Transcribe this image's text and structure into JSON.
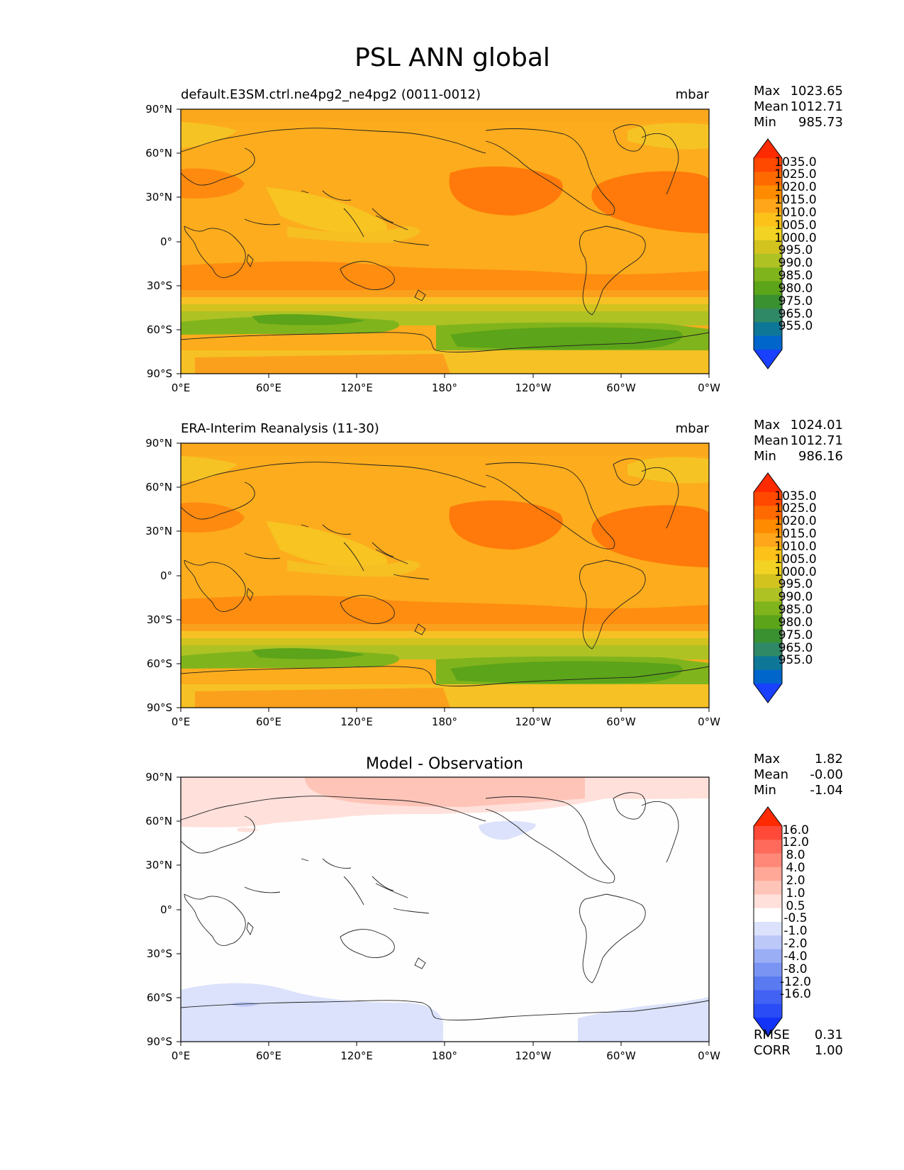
{
  "figure": {
    "title": "PSL ANN global"
  },
  "axes": {
    "xticks": [
      "0°E",
      "60°E",
      "120°E",
      "180°",
      "120°W",
      "60°W",
      "0°W"
    ],
    "yticks": [
      "90°N",
      "60°N",
      "30°N",
      "0°",
      "30°S",
      "60°S",
      "90°S"
    ]
  },
  "panels": [
    {
      "left_title": "default.E3SM.ctrl.ne4pg2_ne4pg2 (0011-0012)",
      "center_title": "",
      "units": "mbar",
      "stats": {
        "max_label": "Max",
        "max": "1023.65",
        "mean_label": "Mean",
        "mean": "1012.71",
        "min_label": "Min",
        "min": "985.73"
      }
    },
    {
      "left_title": "ERA-Interim Reanalysis (11-30)",
      "center_title": "",
      "units": "mbar",
      "stats": {
        "max_label": "Max",
        "max": "1024.01",
        "mean_label": "Mean",
        "mean": "1012.71",
        "min_label": "Min",
        "min": "986.16"
      }
    },
    {
      "left_title": "",
      "center_title": "Model - Observation",
      "units": "",
      "stats": {
        "max_label": "Max",
        "max": "1.82",
        "mean_label": "Mean",
        "mean": "-0.00",
        "min_label": "Min",
        "min": "-1.04"
      },
      "metrics": {
        "rmse_label": "RMSE",
        "rmse": "0.31",
        "corr_label": "CORR",
        "corr": "1.00"
      }
    }
  ],
  "colorbars": {
    "psl": {
      "labels": [
        "1035.0",
        "1025.0",
        "1020.0",
        "1015.0",
        "1010.0",
        "1005.0",
        "1000.0",
        "995.0",
        "990.0",
        "985.0",
        "980.0",
        "975.0",
        "965.0",
        "955.0"
      ],
      "colors": [
        "#ff2a00",
        "#ff4800",
        "#ff6a00",
        "#ff8c00",
        "#ffa61a",
        "#fcc21a",
        "#f2d323",
        "#d2c31f",
        "#aec224",
        "#80b41c",
        "#5ca419",
        "#3a9130",
        "#2f8866",
        "#0e7798",
        "#0066cc",
        "#1a40ff"
      ]
    },
    "diff": {
      "labels": [
        "16.0",
        "12.0",
        "8.0",
        "4.0",
        "2.0",
        "1.0",
        "0.5",
        "-0.5",
        "-1.0",
        "-2.0",
        "-4.0",
        "-8.0",
        "-12.0",
        "-16.0"
      ],
      "colors": [
        "#ff2a00",
        "#ff4a3a",
        "#ff6a5a",
        "#ff8878",
        "#ffa898",
        "#ffc4b8",
        "#ffe0da",
        "#ffffff",
        "#dce2fb",
        "#bcc8f8",
        "#9aaef6",
        "#7a94f4",
        "#5a7af2",
        "#4262f4",
        "#2a4cf6",
        "#1433f8"
      ]
    }
  },
  "colors": {
    "land_line": "#222222"
  }
}
